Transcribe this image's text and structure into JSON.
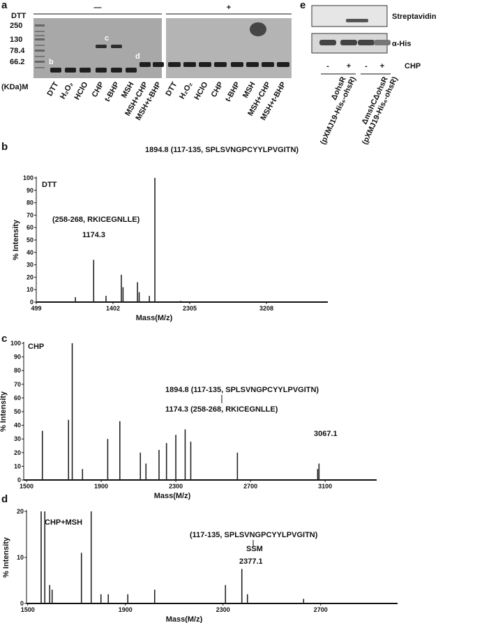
{
  "gels": {
    "panel_a": {
      "label": "a",
      "treatment": "DTT",
      "groups": [
        "—",
        "+"
      ],
      "marker_header": "(KDa)M",
      "markers": [
        "250",
        "130",
        "78.4",
        "66.2"
      ],
      "lanes_minus": [
        "DTT",
        "H₂O₂",
        "HClO",
        "CHP",
        "t-BHP",
        "MSH",
        "MSH+CHP",
        "MSH+t-BHP"
      ],
      "lanes_plus": [
        "DTT",
        "H₂O₂",
        "HClO",
        "CHP",
        "t-BHP",
        "MSH",
        "MSH+CHP",
        "MSH+t-BHP"
      ],
      "band_labels": [
        "b",
        "c",
        "d"
      ]
    },
    "panel_e": {
      "label": "e",
      "rows": [
        "Streptavidin",
        "α-His"
      ],
      "treatment": "CHP",
      "signs": [
        "-",
        "+",
        "-",
        "+"
      ],
      "strains": [
        [
          "ΔohsR",
          "(pXMJ19-His₆-ohsR)"
        ],
        [
          "ΔmshCΔohsR",
          "(pXMJ19-His₆-ohsR)"
        ]
      ]
    }
  },
  "chart_data": [
    {
      "type": "spectrum",
      "label": "b",
      "title": "DTT",
      "x_label": "Mass(M/z)",
      "y_label": "% Intensity",
      "annotations": [
        "1894.8 (117-135, SPLSVNGPCYYLPVGITN)",
        "(258-268, RKICEGNLLE)",
        "1174.3"
      ],
      "x": [
        960,
        1174.3,
        1320,
        1500,
        1520,
        1690,
        1710,
        1830,
        1894.8,
        2200
      ],
      "values": [
        4,
        34,
        5,
        22,
        12,
        16,
        8,
        5,
        100,
        1
      ],
      "color": "#222222",
      "xlim": [
        499,
        3930
      ],
      "xticks": [
        499,
        1402,
        2305,
        3208
      ],
      "ylim": [
        0,
        100
      ],
      "yticks": [
        0,
        10,
        20,
        30,
        40,
        50,
        60,
        70,
        80,
        90,
        100
      ]
    },
    {
      "type": "spectrum",
      "label": "c",
      "title": "CHP",
      "x_label": "Mass(M/z)",
      "y_label": "% Intensity",
      "annotations": [
        "1894.8 (117-135, SPLSVNGPCYYLPVGITN)",
        "1174.3 (258-268, RKICEGNLLE)",
        "3067.1"
      ],
      "x": [
        1585,
        1725,
        1745,
        1800,
        1935,
        2000,
        2110,
        2140,
        2210,
        2250,
        2300,
        2350,
        2380,
        2630,
        3060,
        3067.1
      ],
      "values": [
        36,
        44,
        100,
        8,
        30,
        43,
        20,
        12,
        22,
        27,
        33,
        37,
        28,
        20,
        8,
        12
      ],
      "color": "#222222",
      "xlim": [
        1485,
        3376
      ],
      "xticks": [
        1500,
        1900,
        2300,
        2700,
        3100
      ],
      "ylim": [
        0,
        100
      ],
      "yticks": [
        0,
        10,
        20,
        30,
        40,
        50,
        60,
        70,
        80,
        90,
        100
      ]
    },
    {
      "type": "spectrum",
      "label": "d",
      "title": "CHP+MSH",
      "x_label": "Mass(M/z)",
      "y_label": "% Intensity",
      "annotations": [
        "(117-135, SPLSVNGPCYYLPVGITN)",
        "SSM",
        "2377.1"
      ],
      "x": [
        1555,
        1570,
        1590,
        1600,
        1720,
        1760,
        1800,
        1830,
        1910,
        2020,
        2310,
        2377.1,
        2400,
        2630
      ],
      "values": [
        20,
        20,
        4,
        3,
        11,
        20,
        2,
        2,
        2,
        3,
        4,
        7.5,
        2,
        1
      ],
      "color": "#222222",
      "xlim": [
        1495,
        3015
      ],
      "xticks": [
        1500,
        1900,
        2300,
        2700
      ],
      "ylim": [
        0,
        20
      ],
      "yticks": [
        0,
        10,
        20
      ]
    }
  ]
}
